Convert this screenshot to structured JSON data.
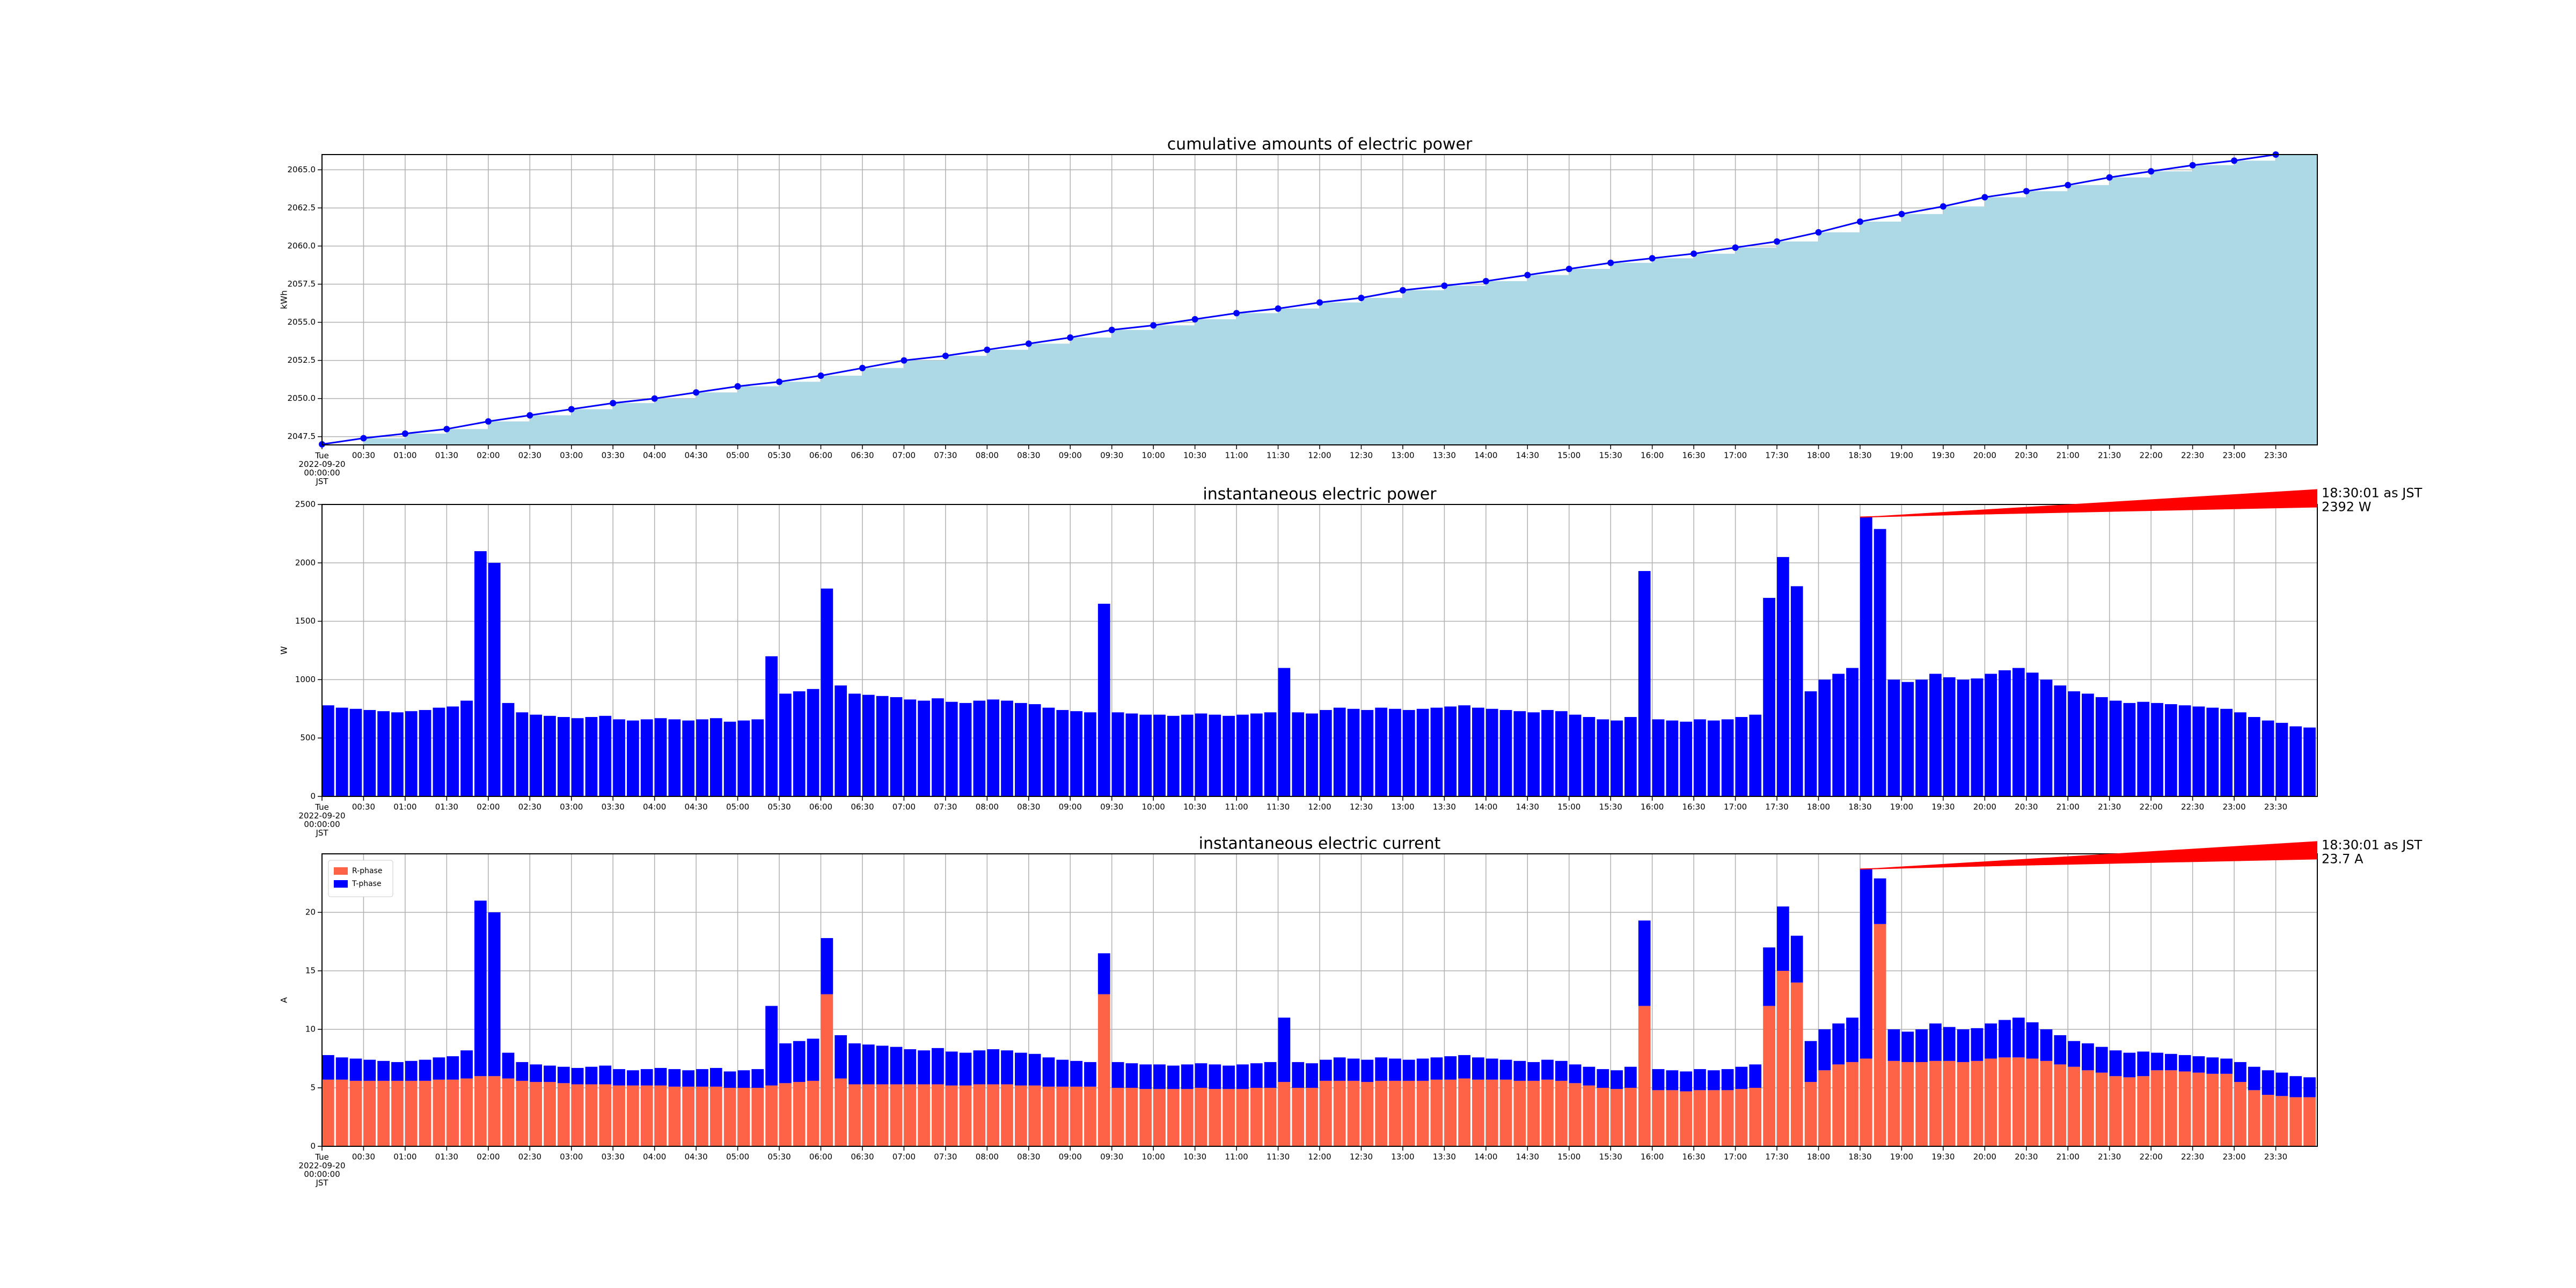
{
  "chart_data": [
    {
      "type": "line",
      "title": "cumulative amounts of electric power",
      "y_label": "kWh",
      "x": [
        "00:00",
        "00:30",
        "01:00",
        "01:30",
        "02:00",
        "02:30",
        "03:00",
        "03:30",
        "04:00",
        "04:30",
        "05:00",
        "05:30",
        "06:00",
        "06:30",
        "07:00",
        "07:30",
        "08:00",
        "08:30",
        "09:00",
        "09:30",
        "10:00",
        "10:30",
        "11:00",
        "11:30",
        "12:00",
        "12:30",
        "13:00",
        "13:30",
        "14:00",
        "14:30",
        "15:00",
        "15:30",
        "16:00",
        "16:30",
        "17:00",
        "17:30",
        "18:00",
        "18:30",
        "19:00",
        "19:30",
        "20:00",
        "20:30",
        "21:00",
        "21:30",
        "22:00",
        "22:30",
        "23:00",
        "23:30"
      ],
      "values": [
        2047.0,
        2047.4,
        2047.7,
        2048.0,
        2048.5,
        2048.9,
        2049.3,
        2049.7,
        2050.0,
        2050.4,
        2050.8,
        2051.1,
        2051.5,
        2052.0,
        2052.5,
        2052.8,
        2053.2,
        2053.6,
        2054.0,
        2054.5,
        2054.8,
        2055.2,
        2055.6,
        2055.9,
        2056.3,
        2056.6,
        2057.1,
        2057.4,
        2057.7,
        2058.1,
        2058.5,
        2058.9,
        2059.2,
        2059.5,
        2059.9,
        2060.3,
        2060.9,
        2061.6,
        2062.1,
        2062.6,
        2063.2,
        2063.6,
        2064.0,
        2064.5,
        2064.9,
        2065.3,
        2065.6,
        2066.0
      ],
      "color": "#0000ff",
      "step_fill": "#add8e6",
      "markers": true,
      "xlim": [
        "00:00",
        "24:00"
      ],
      "xticks": [
        {
          "value": "00:00",
          "label": "Tue\n2022-09-20\n00:00:00\nJST"
        },
        "00:30",
        "01:00",
        "01:30",
        "02:00",
        "02:30",
        "03:00",
        "03:30",
        "04:00",
        "04:30",
        "05:00",
        "05:30",
        "06:00",
        "06:30",
        "07:00",
        "07:30",
        "08:00",
        "08:30",
        "09:00",
        "09:30",
        "10:00",
        "10:30",
        "11:00",
        "11:30",
        "12:00",
        "12:30",
        "13:00",
        "13:30",
        "14:00",
        "14:30",
        "15:00",
        "15:30",
        "16:00",
        "16:30",
        "17:00",
        "17:30",
        "18:00",
        "18:30",
        "19:00",
        "19:30",
        "20:00",
        "20:30",
        "21:00",
        "21:30",
        "22:00",
        "22:30",
        "23:00",
        "23:30"
      ],
      "ylim": [
        2046.96,
        2066.0
      ],
      "yticks": [
        2047.5,
        {
          "value": 2050,
          "label": "2050.0"
        },
        2052.5,
        {
          "value": 2055,
          "label": "2055.0"
        },
        2057.5,
        {
          "value": 2060,
          "label": "2060.0"
        },
        2062.5,
        {
          "value": 2065,
          "label": "2065.0"
        }
      ],
      "grid": true
    },
    {
      "type": "bar",
      "title": "instantaneous electric power",
      "y_label": "W",
      "color": "#0000ff",
      "x": [
        "00:00",
        "00:10",
        "00:20",
        "00:30",
        "00:40",
        "00:50",
        "01:00",
        "01:10",
        "01:20",
        "01:30",
        "01:40",
        "01:50",
        "02:00",
        "02:10",
        "02:20",
        "02:30",
        "02:40",
        "02:50",
        "03:00",
        "03:10",
        "03:20",
        "03:30",
        "03:40",
        "03:50",
        "04:00",
        "04:10",
        "04:20",
        "04:30",
        "04:40",
        "04:50",
        "05:00",
        "05:10",
        "05:20",
        "05:30",
        "05:40",
        "05:50",
        "06:00",
        "06:10",
        "06:20",
        "06:30",
        "06:40",
        "06:50",
        "07:00",
        "07:10",
        "07:20",
        "07:30",
        "07:40",
        "07:50",
        "08:00",
        "08:10",
        "08:20",
        "08:30",
        "08:40",
        "08:50",
        "09:00",
        "09:10",
        "09:20",
        "09:30",
        "09:40",
        "09:50",
        "10:00",
        "10:10",
        "10:20",
        "10:30",
        "10:40",
        "10:50",
        "11:00",
        "11:10",
        "11:20",
        "11:30",
        "11:40",
        "11:50",
        "12:00",
        "12:10",
        "12:20",
        "12:30",
        "12:40",
        "12:50",
        "13:00",
        "13:10",
        "13:20",
        "13:30",
        "13:40",
        "13:50",
        "14:00",
        "14:10",
        "14:20",
        "14:30",
        "14:40",
        "14:50",
        "15:00",
        "15:10",
        "15:20",
        "15:30",
        "15:40",
        "15:50",
        "16:00",
        "16:10",
        "16:20",
        "16:30",
        "16:40",
        "16:50",
        "17:00",
        "17:10",
        "17:20",
        "17:30",
        "17:40",
        "17:50",
        "18:00",
        "18:10",
        "18:20",
        "18:30",
        "18:40",
        "18:50",
        "19:00",
        "19:10",
        "19:20",
        "19:30",
        "19:40",
        "19:50",
        "20:00",
        "20:10",
        "20:20",
        "20:30",
        "20:40",
        "20:50",
        "21:00",
        "21:10",
        "21:20",
        "21:30",
        "21:40",
        "21:50",
        "22:00",
        "22:10",
        "22:20",
        "22:30",
        "22:40",
        "22:50",
        "23:00",
        "23:10",
        "23:20",
        "23:30",
        "23:40",
        "23:50"
      ],
      "values": [
        780,
        760,
        750,
        740,
        730,
        720,
        730,
        740,
        760,
        770,
        820,
        2100,
        2000,
        800,
        720,
        700,
        690,
        680,
        670,
        680,
        690,
        660,
        650,
        660,
        670,
        660,
        650,
        660,
        670,
        640,
        650,
        660,
        1200,
        880,
        900,
        920,
        1780,
        950,
        880,
        870,
        860,
        850,
        830,
        820,
        840,
        810,
        800,
        820,
        830,
        820,
        800,
        790,
        760,
        740,
        730,
        720,
        1650,
        720,
        710,
        700,
        700,
        690,
        700,
        710,
        700,
        690,
        700,
        710,
        720,
        1100,
        720,
        710,
        740,
        760,
        750,
        740,
        760,
        750,
        740,
        750,
        760,
        770,
        780,
        760,
        750,
        740,
        730,
        720,
        740,
        730,
        700,
        680,
        660,
        650,
        680,
        1930,
        660,
        650,
        640,
        660,
        650,
        660,
        680,
        700,
        1700,
        2050,
        1800,
        900,
        1000,
        1050,
        1100,
        2392,
        2290,
        1000,
        980,
        1000,
        1050,
        1020,
        1000,
        1010,
        1050,
        1080,
        1100,
        1060,
        1000,
        950,
        900,
        880,
        850,
        820,
        800,
        810,
        800,
        790,
        780,
        770,
        760,
        750,
        720,
        680,
        650,
        630,
        600,
        590
      ],
      "xlim": [
        "00:00",
        "24:00"
      ],
      "xticks": [
        {
          "value": "00:00",
          "label": "Tue\n2022-09-20\n00:00:00\nJST"
        },
        "00:30",
        "01:00",
        "01:30",
        "02:00",
        "02:30",
        "03:00",
        "03:30",
        "04:00",
        "04:30",
        "05:00",
        "05:30",
        "06:00",
        "06:30",
        "07:00",
        "07:30",
        "08:00",
        "08:30",
        "09:00",
        "09:30",
        "10:00",
        "10:30",
        "11:00",
        "11:30",
        "12:00",
        "12:30",
        "13:00",
        "13:30",
        "14:00",
        "14:30",
        "15:00",
        "15:30",
        "16:00",
        "16:30",
        "17:00",
        "17:30",
        "18:00",
        "18:30",
        "19:00",
        "19:30",
        "20:00",
        "20:30",
        "21:00",
        "21:30",
        "22:00",
        "22:30",
        "23:00",
        "23:30"
      ],
      "ylim": [
        0,
        2500
      ],
      "yticks": [
        0,
        500,
        1000,
        1500,
        2000,
        2500
      ],
      "grid": true,
      "annotation": {
        "text": "18:30:01 as JST\n2392 W",
        "x": "18:30",
        "y": 2392,
        "color": "#ff0000"
      }
    },
    {
      "type": "bar",
      "stacked": true,
      "title": "instantaneous electric current",
      "y_label": "A",
      "legend": "upper left",
      "x": [
        "00:00",
        "00:10",
        "00:20",
        "00:30",
        "00:40",
        "00:50",
        "01:00",
        "01:10",
        "01:20",
        "01:30",
        "01:40",
        "01:50",
        "02:00",
        "02:10",
        "02:20",
        "02:30",
        "02:40",
        "02:50",
        "03:00",
        "03:10",
        "03:20",
        "03:30",
        "03:40",
        "03:50",
        "04:00",
        "04:10",
        "04:20",
        "04:30",
        "04:40",
        "04:50",
        "05:00",
        "05:10",
        "05:20",
        "05:30",
        "05:40",
        "05:50",
        "06:00",
        "06:10",
        "06:20",
        "06:30",
        "06:40",
        "06:50",
        "07:00",
        "07:10",
        "07:20",
        "07:30",
        "07:40",
        "07:50",
        "08:00",
        "08:10",
        "08:20",
        "08:30",
        "08:40",
        "08:50",
        "09:00",
        "09:10",
        "09:20",
        "09:30",
        "09:40",
        "09:50",
        "10:00",
        "10:10",
        "10:20",
        "10:30",
        "10:40",
        "10:50",
        "11:00",
        "11:10",
        "11:20",
        "11:30",
        "11:40",
        "11:50",
        "12:00",
        "12:10",
        "12:20",
        "12:30",
        "12:40",
        "12:50",
        "13:00",
        "13:10",
        "13:20",
        "13:30",
        "13:40",
        "13:50",
        "14:00",
        "14:10",
        "14:20",
        "14:30",
        "14:40",
        "14:50",
        "15:00",
        "15:10",
        "15:20",
        "15:30",
        "15:40",
        "15:50",
        "16:00",
        "16:10",
        "16:20",
        "16:30",
        "16:40",
        "16:50",
        "17:00",
        "17:10",
        "17:20",
        "17:30",
        "17:40",
        "17:50",
        "18:00",
        "18:10",
        "18:20",
        "18:30",
        "18:40",
        "18:50",
        "19:00",
        "19:10",
        "19:20",
        "19:30",
        "19:40",
        "19:50",
        "20:00",
        "20:10",
        "20:20",
        "20:30",
        "20:40",
        "20:50",
        "21:00",
        "21:10",
        "21:20",
        "21:30",
        "21:40",
        "21:50",
        "22:00",
        "22:10",
        "22:20",
        "22:30",
        "22:40",
        "22:50",
        "23:00",
        "23:10",
        "23:20",
        "23:30",
        "23:40",
        "23:50"
      ],
      "series": [
        {
          "name": "R-phase",
          "color": "#ff6347",
          "values": [
            5.7,
            5.7,
            5.6,
            5.6,
            5.6,
            5.6,
            5.6,
            5.6,
            5.7,
            5.7,
            5.8,
            6.0,
            6.0,
            5.8,
            5.6,
            5.5,
            5.5,
            5.4,
            5.3,
            5.3,
            5.3,
            5.2,
            5.2,
            5.2,
            5.2,
            5.1,
            5.1,
            5.1,
            5.1,
            5.0,
            5.0,
            5.0,
            5.2,
            5.4,
            5.5,
            5.6,
            13.0,
            5.8,
            5.3,
            5.3,
            5.3,
            5.3,
            5.3,
            5.3,
            5.3,
            5.2,
            5.2,
            5.3,
            5.3,
            5.3,
            5.2,
            5.2,
            5.1,
            5.1,
            5.1,
            5.1,
            13.0,
            5.0,
            5.0,
            4.9,
            4.9,
            4.9,
            4.9,
            5.0,
            4.9,
            4.9,
            4.9,
            5.0,
            5.0,
            5.5,
            5.0,
            5.0,
            5.6,
            5.6,
            5.6,
            5.5,
            5.6,
            5.6,
            5.6,
            5.6,
            5.7,
            5.7,
            5.8,
            5.7,
            5.7,
            5.7,
            5.6,
            5.6,
            5.7,
            5.6,
            5.4,
            5.2,
            5.0,
            4.9,
            5.0,
            12.0,
            4.8,
            4.8,
            4.7,
            4.8,
            4.8,
            4.8,
            4.9,
            5.0,
            12.0,
            15.0,
            14.0,
            5.5,
            6.5,
            7.0,
            7.2,
            7.5,
            19.0,
            7.3,
            7.2,
            7.2,
            7.3,
            7.3,
            7.2,
            7.3,
            7.5,
            7.6,
            7.6,
            7.5,
            7.3,
            7.0,
            6.8,
            6.5,
            6.3,
            6.0,
            5.9,
            6.0,
            6.5,
            6.5,
            6.4,
            6.3,
            6.2,
            6.2,
            5.5,
            4.8,
            4.4,
            4.3,
            4.2,
            4.2
          ]
        },
        {
          "name": "T-phase",
          "color": "#0000ff",
          "values": [
            2.1,
            1.9,
            1.9,
            1.8,
            1.7,
            1.6,
            1.7,
            1.8,
            1.9,
            2.0,
            2.4,
            15.0,
            14.0,
            2.2,
            1.6,
            1.5,
            1.4,
            1.4,
            1.4,
            1.5,
            1.6,
            1.4,
            1.3,
            1.4,
            1.5,
            1.5,
            1.4,
            1.5,
            1.6,
            1.4,
            1.5,
            1.6,
            6.8,
            3.4,
            3.5,
            3.6,
            4.8,
            3.7,
            3.5,
            3.4,
            3.3,
            3.2,
            3.0,
            2.9,
            3.1,
            2.9,
            2.8,
            2.9,
            3.0,
            2.9,
            2.8,
            2.7,
            2.5,
            2.3,
            2.2,
            2.1,
            3.5,
            2.2,
            2.1,
            2.1,
            2.1,
            2.0,
            2.1,
            2.1,
            2.1,
            2.0,
            2.1,
            2.1,
            2.2,
            5.5,
            2.2,
            2.1,
            1.8,
            2.0,
            1.9,
            1.9,
            2.0,
            1.9,
            1.8,
            1.9,
            1.9,
            2.0,
            2.0,
            1.9,
            1.8,
            1.7,
            1.7,
            1.6,
            1.7,
            1.7,
            1.6,
            1.6,
            1.6,
            1.6,
            1.8,
            7.3,
            1.8,
            1.7,
            1.7,
            1.8,
            1.7,
            1.8,
            1.9,
            2.0,
            5.0,
            5.5,
            4.0,
            3.5,
            3.5,
            3.5,
            3.8,
            16.2,
            3.9,
            2.7,
            2.6,
            2.8,
            3.2,
            2.9,
            2.8,
            2.8,
            3.0,
            3.2,
            3.4,
            3.1,
            2.7,
            2.5,
            2.2,
            2.3,
            2.2,
            2.2,
            2.1,
            2.1,
            1.5,
            1.4,
            1.4,
            1.4,
            1.4,
            1.3,
            1.7,
            2.0,
            2.1,
            2.0,
            1.8,
            1.7
          ]
        }
      ],
      "xlim": [
        "00:00",
        "24:00"
      ],
      "xticks": [
        {
          "value": "00:00",
          "label": "Tue\n2022-09-20\n00:00:00\nJST"
        },
        "00:30",
        "01:00",
        "01:30",
        "02:00",
        "02:30",
        "03:00",
        "03:30",
        "04:00",
        "04:30",
        "05:00",
        "05:30",
        "06:00",
        "06:30",
        "07:00",
        "07:30",
        "08:00",
        "08:30",
        "09:00",
        "09:30",
        "10:00",
        "10:30",
        "11:00",
        "11:30",
        "12:00",
        "12:30",
        "13:00",
        "13:30",
        "14:00",
        "14:30",
        "15:00",
        "15:30",
        "16:00",
        "16:30",
        "17:00",
        "17:30",
        "18:00",
        "18:30",
        "19:00",
        "19:30",
        "20:00",
        "20:30",
        "21:00",
        "21:30",
        "22:00",
        "22:30",
        "23:00",
        "23:30"
      ],
      "ylim": [
        0,
        25
      ],
      "yticks": [
        0,
        5,
        10,
        15,
        20
      ],
      "grid": true,
      "annotation": {
        "text": "18:30:01 as JST\n23.7 A",
        "x": "18:30",
        "y": 23.7,
        "color": "#ff0000"
      }
    }
  ]
}
